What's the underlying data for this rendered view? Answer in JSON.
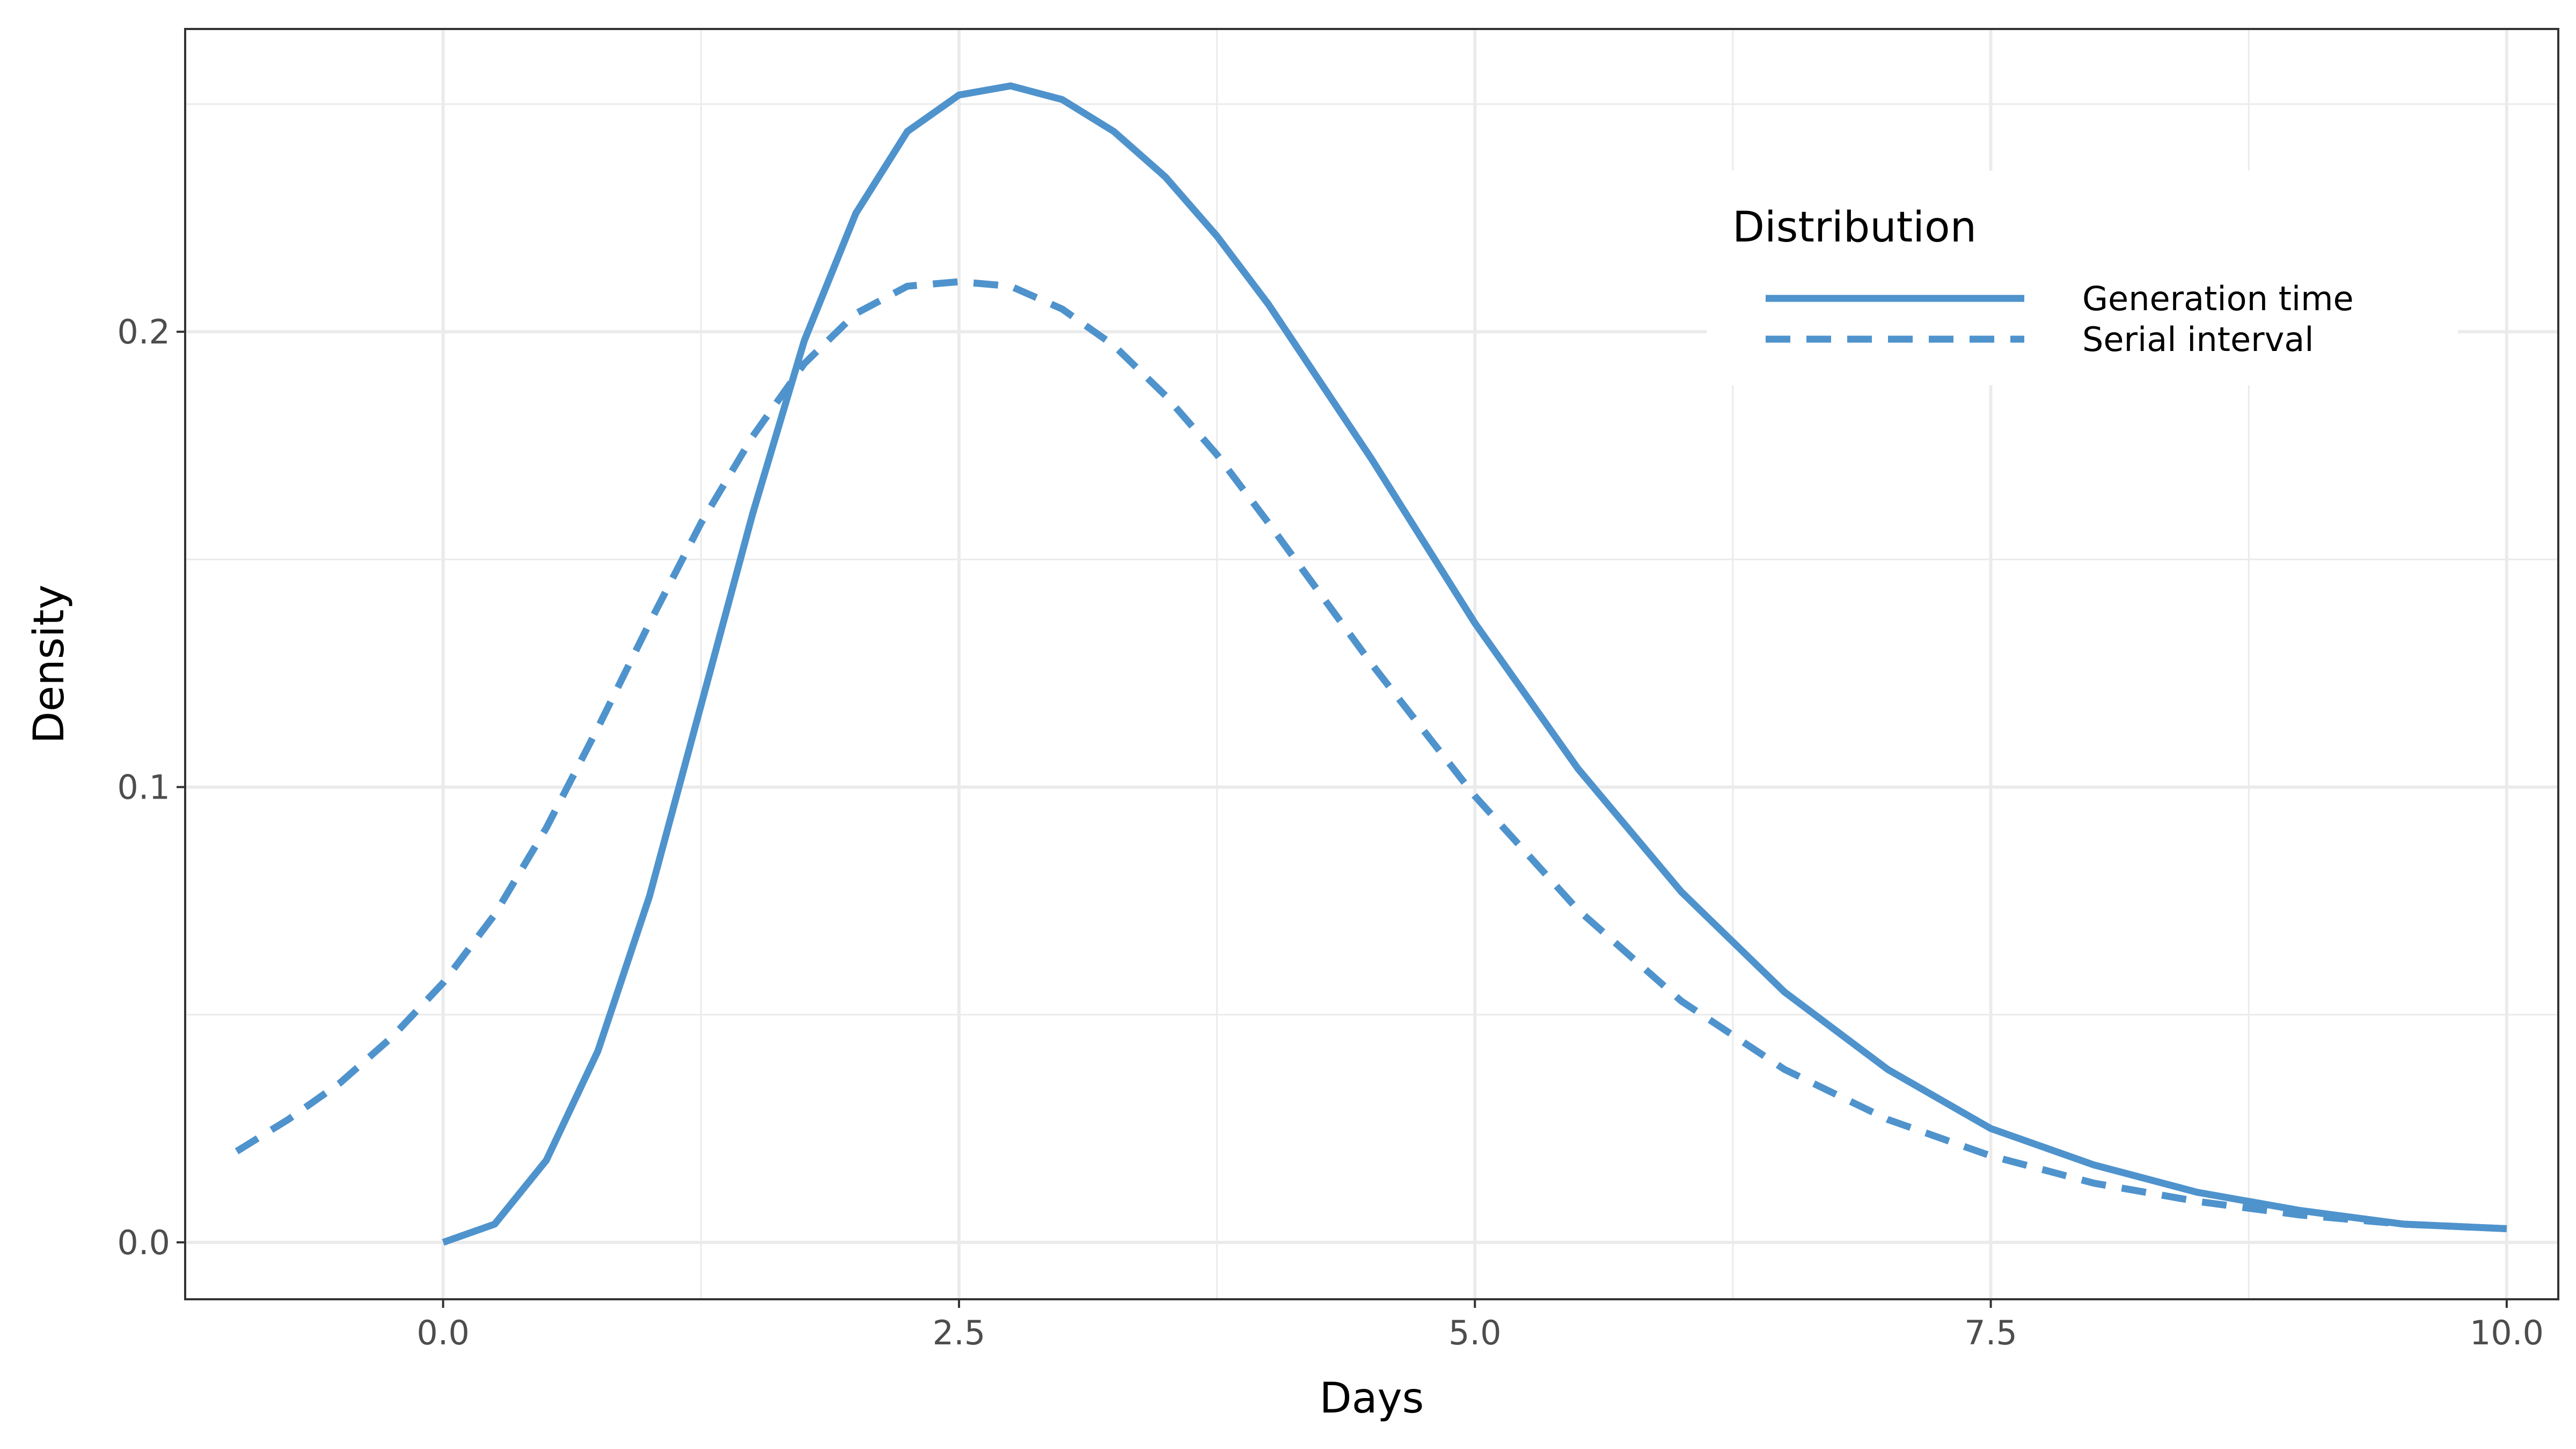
{
  "chart_data": {
    "type": "line",
    "xlabel": "Days",
    "ylabel": "Density",
    "xlim": [
      -1.25,
      10.25
    ],
    "ylim": [
      -0.0125,
      0.2665
    ],
    "x_ticks": [
      0.0,
      2.5,
      5.0,
      7.5,
      10.0
    ],
    "x_tick_labels": [
      "0.0",
      "2.5",
      "5.0",
      "7.5",
      "10.0"
    ],
    "y_ticks": [
      0.0,
      0.1,
      0.2
    ],
    "y_tick_labels": [
      "0.0",
      "0.1",
      "0.2"
    ],
    "grid": true,
    "legend": {
      "title": "Distribution",
      "position": "top-right",
      "entries": [
        "Generation time",
        "Serial interval"
      ]
    },
    "series": [
      {
        "name": "Generation time",
        "line_style": "solid",
        "color": "#4f93cd",
        "x": [
          0.0,
          0.25,
          0.5,
          0.75,
          1.0,
          1.25,
          1.5,
          1.75,
          2.0,
          2.25,
          2.5,
          2.75,
          3.0,
          3.25,
          3.5,
          3.75,
          4.0,
          4.5,
          5.0,
          5.5,
          6.0,
          6.5,
          7.0,
          7.5,
          8.0,
          8.5,
          9.0,
          9.5,
          10.0
        ],
        "y": [
          0.0,
          0.004,
          0.018,
          0.042,
          0.076,
          0.118,
          0.16,
          0.198,
          0.226,
          0.244,
          0.252,
          0.254,
          0.251,
          0.244,
          0.234,
          0.221,
          0.206,
          0.172,
          0.136,
          0.104,
          0.077,
          0.055,
          0.038,
          0.025,
          0.017,
          0.011,
          0.007,
          0.004,
          0.003
        ]
      },
      {
        "name": "Serial interval",
        "line_style": "dashed",
        "color": "#4f93cd",
        "x": [
          -1.0,
          -0.75,
          -0.5,
          -0.25,
          0.0,
          0.25,
          0.5,
          0.75,
          1.0,
          1.25,
          1.5,
          1.75,
          2.0,
          2.25,
          2.5,
          2.75,
          3.0,
          3.25,
          3.5,
          3.75,
          4.0,
          4.5,
          5.0,
          5.5,
          6.0,
          6.5,
          7.0,
          7.5,
          8.0,
          8.5,
          9.0,
          9.5,
          10.0
        ],
        "y": [
          0.02,
          0.027,
          0.035,
          0.045,
          0.057,
          0.072,
          0.091,
          0.113,
          0.136,
          0.158,
          0.177,
          0.193,
          0.204,
          0.21,
          0.211,
          0.21,
          0.205,
          0.197,
          0.186,
          0.173,
          0.158,
          0.127,
          0.098,
          0.073,
          0.053,
          0.038,
          0.027,
          0.019,
          0.013,
          0.009,
          0.006,
          0.004,
          0.003
        ]
      }
    ]
  }
}
